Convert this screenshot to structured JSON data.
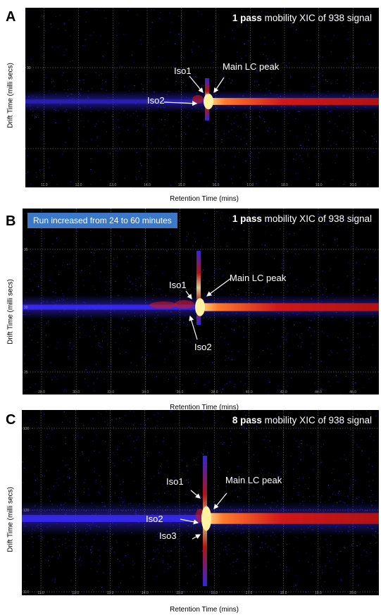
{
  "chart_data": [
    {
      "type": "heatmap",
      "panel_label": "A",
      "title_bold": "1 pass",
      "title_rest": " mobility XIC of 938 signal",
      "xlabel": "Retention Time (mins)",
      "ylabel": "Drift Time (milli secs)",
      "x_ticks": [
        "11.0",
        "12.0",
        "13.0",
        "14.0",
        "15.0",
        "16.0",
        "17.0",
        "18.0",
        "19.0",
        "20.0"
      ],
      "y_ticks": [
        "30"
      ],
      "grid": true,
      "annotations": [
        "Iso1",
        "Iso2",
        "Main LC peak"
      ],
      "colors": {
        "background": "#000000",
        "band_low": "#3a2cff",
        "band_mid": "#d01818",
        "band_high": "#fff2a0"
      }
    },
    {
      "type": "heatmap",
      "panel_label": "B",
      "banner": "Run increased from 24 to 60 minutes",
      "title_bold": "1 pass",
      "title_rest": " mobility XIC of 938 signal",
      "xlabel": "Retention Time (mins)",
      "ylabel": "Drift Time (milli secs)",
      "x_ticks": [
        "28.0",
        "30.0",
        "32.0",
        "34.0",
        "36.0",
        "38.0",
        "40.0",
        "42.0",
        "44.0",
        "46.0"
      ],
      "y_ticks": [
        "35",
        "30",
        "25"
      ],
      "grid": true,
      "annotations": [
        "Iso1",
        "Main LC peak",
        "Iso2"
      ],
      "colors": {
        "background": "#000000",
        "band_low": "#3a2cff",
        "band_mid": "#d01818",
        "band_high": "#fff2a0"
      }
    },
    {
      "type": "heatmap",
      "panel_label": "C",
      "title_bold": "8 pass",
      "title_rest": " mobility XIC of 938 signal",
      "xlabel": "Retention Time (mins)",
      "ylabel": "Drift Time (milli secs)",
      "x_ticks": [
        "11.0",
        "12.0",
        "13.0",
        "14.0",
        "15.0",
        "16.0",
        "17.0",
        "18.0",
        "19.0",
        "20.0"
      ],
      "y_ticks": [
        "130",
        "120",
        "110"
      ],
      "grid": true,
      "annotations": [
        "Iso1",
        "Main LC peak",
        "Iso2",
        "Iso3"
      ],
      "colors": {
        "background": "#000000",
        "band_low": "#3a2cff",
        "band_mid": "#d01818",
        "band_high": "#fff2a0"
      }
    }
  ]
}
